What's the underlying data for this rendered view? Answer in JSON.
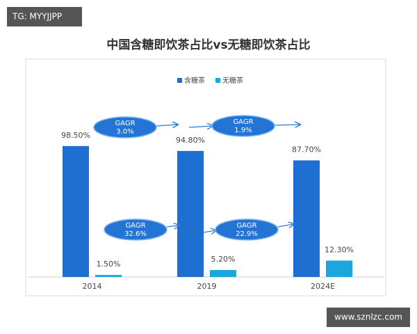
{
  "chart_data": {
    "type": "bar",
    "title": "中国含糖即饮茶占比vs无糖即饮茶占比",
    "categories": [
      "2014",
      "2019",
      "2024E"
    ],
    "series": [
      {
        "name": "含糖茶",
        "color": "#1f6fd1",
        "values": [
          98.5,
          94.8,
          87.7
        ],
        "value_labels": [
          "98.50%",
          "94.80%",
          "87.70%"
        ]
      },
      {
        "name": "无糖茶",
        "color": "#1ba6df",
        "values": [
          1.5,
          5.2,
          12.3
        ],
        "value_labels": [
          "1.50%",
          "5.20%",
          "12.30%"
        ]
      }
    ],
    "annotations": [
      {
        "label": "GAGR",
        "value": "3.0%"
      },
      {
        "label": "GAGR",
        "value": "1.9%"
      },
      {
        "label": "GAGR",
        "value": "32.6%"
      },
      {
        "label": "GAGR",
        "value": "22.9%"
      }
    ],
    "watermarks": [
      "TG: MYYJJPP",
      "www.sznlzc.com"
    ]
  }
}
